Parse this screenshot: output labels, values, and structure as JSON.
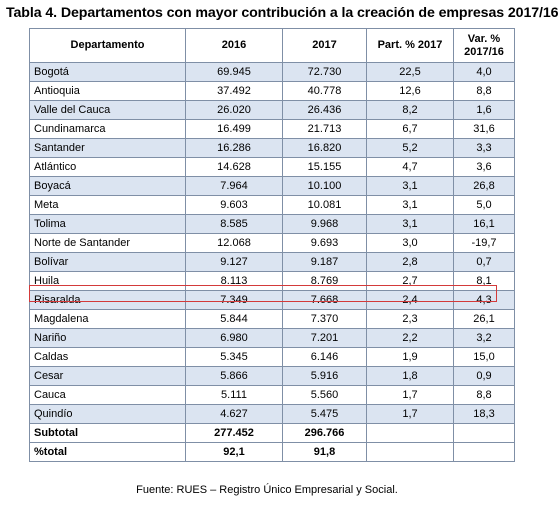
{
  "title": "Tabla 4. Departamentos con mayor contribución a la creación de empresas 2017/16",
  "headers": [
    "Departamento",
    "2016",
    "2017",
    "Part. % 2017",
    "Var. % 2017/16"
  ],
  "rows": [
    {
      "dep": "Bogotá",
      "y2016": "69.945",
      "y2017": "72.730",
      "part": "22,5",
      "var": "4,0"
    },
    {
      "dep": "Antioquia",
      "y2016": "37.492",
      "y2017": "40.778",
      "part": "12,6",
      "var": "8,8"
    },
    {
      "dep": "Valle del Cauca",
      "y2016": "26.020",
      "y2017": "26.436",
      "part": "8,2",
      "var": "1,6"
    },
    {
      "dep": "Cundinamarca",
      "y2016": "16.499",
      "y2017": "21.713",
      "part": "6,7",
      "var": "31,6"
    },
    {
      "dep": "Santander",
      "y2016": "16.286",
      "y2017": "16.820",
      "part": "5,2",
      "var": "3,3"
    },
    {
      "dep": "Atlántico",
      "y2016": "14.628",
      "y2017": "15.155",
      "part": "4,7",
      "var": "3,6"
    },
    {
      "dep": "Boyacá",
      "y2016": "7.964",
      "y2017": "10.100",
      "part": "3,1",
      "var": "26,8"
    },
    {
      "dep": "Meta",
      "y2016": "9.603",
      "y2017": "10.081",
      "part": "3,1",
      "var": "5,0"
    },
    {
      "dep": "Tolima",
      "y2016": "8.585",
      "y2017": "9.968",
      "part": "3,1",
      "var": "16,1"
    },
    {
      "dep": "Norte de Santander",
      "y2016": "12.068",
      "y2017": "9.693",
      "part": "3,0",
      "var": "-19,7"
    },
    {
      "dep": "Bolívar",
      "y2016": "9.127",
      "y2017": "9.187",
      "part": "2,8",
      "var": "0,7"
    },
    {
      "dep": "Huila",
      "y2016": "8.113",
      "y2017": "8.769",
      "part": "2,7",
      "var": "8,1"
    },
    {
      "dep": "Risaralda",
      "y2016": "7.349",
      "y2017": "7.668",
      "part": "2,4",
      "var": "4,3"
    },
    {
      "dep": "Magdalena",
      "y2016": "5.844",
      "y2017": "7.370",
      "part": "2,3",
      "var": "26,1"
    },
    {
      "dep": "Nariño",
      "y2016": "6.980",
      "y2017": "7.201",
      "part": "2,2",
      "var": "3,2"
    },
    {
      "dep": "Caldas",
      "y2016": "5.345",
      "y2017": "6.146",
      "part": "1,9",
      "var": "15,0"
    },
    {
      "dep": "Cesar",
      "y2016": "5.866",
      "y2017": "5.916",
      "part": "1,8",
      "var": "0,9"
    },
    {
      "dep": "Cauca",
      "y2016": "5.111",
      "y2017": "5.560",
      "part": "1,7",
      "var": "8,8"
    },
    {
      "dep": "Quindío",
      "y2016": "4.627",
      "y2017": "5.475",
      "part": "1,7",
      "var": "18,3"
    }
  ],
  "subtotal": {
    "label": "Subtotal",
    "y2016": "277.452",
    "y2017": "296.766"
  },
  "pct_total": {
    "label": "%total",
    "y2016": "92,1",
    "y2017": "91,8"
  },
  "source": "Fuente: RUES – Registro Único Empresarial y Social.",
  "colors": {
    "stripe": "#dbe4f1",
    "border": "#7f8fa6",
    "highlight": "#d33a3a"
  }
}
